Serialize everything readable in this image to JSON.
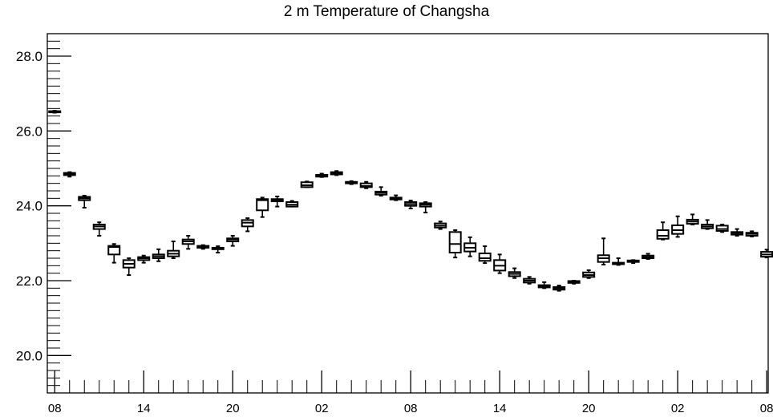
{
  "chart_data": {
    "type": "box",
    "title": "2 m Temperature of Changsha",
    "xlabel": "",
    "ylabel": "",
    "ylim": [
      19.0,
      28.6
    ],
    "y_ticks": [
      20.0,
      22.0,
      24.0,
      26.0,
      28.0
    ],
    "y_tick_labels": [
      "20.0",
      "22.0",
      "24.0",
      "26.0",
      "28.0"
    ],
    "x_range": [
      -0.5,
      48.1
    ],
    "x_ticks": [
      0,
      6,
      12,
      18,
      24,
      30,
      36,
      42,
      48
    ],
    "x_tick_labels": [
      "08",
      "14",
      "20",
      "02",
      "08",
      "14",
      "20",
      "02",
      "08"
    ],
    "grid": false,
    "legend": "none",
    "boxes": [
      {
        "x": 0,
        "min": 26.49,
        "q1": 26.5,
        "median": 26.51,
        "q3": 26.53,
        "max": 26.54
      },
      {
        "x": 1,
        "min": 24.78,
        "q1": 24.82,
        "median": 24.85,
        "q3": 24.88,
        "max": 24.9
      },
      {
        "x": 2,
        "min": 23.95,
        "q1": 24.15,
        "median": 24.2,
        "q3": 24.24,
        "max": 24.27
      },
      {
        "x": 3,
        "min": 23.2,
        "q1": 23.38,
        "median": 23.45,
        "q3": 23.5,
        "max": 23.56
      },
      {
        "x": 4,
        "min": 22.48,
        "q1": 22.7,
        "median": 22.9,
        "q3": 22.93,
        "max": 22.98
      },
      {
        "x": 5,
        "min": 22.15,
        "q1": 22.35,
        "median": 22.45,
        "q3": 22.55,
        "max": 22.6
      },
      {
        "x": 6,
        "min": 22.48,
        "q1": 22.55,
        "median": 22.6,
        "q3": 22.63,
        "max": 22.67
      },
      {
        "x": 7,
        "min": 22.52,
        "q1": 22.6,
        "median": 22.65,
        "q3": 22.7,
        "max": 22.84
      },
      {
        "x": 8,
        "min": 22.6,
        "q1": 22.65,
        "median": 22.72,
        "q3": 22.8,
        "max": 23.05
      },
      {
        "x": 9,
        "min": 22.85,
        "q1": 22.98,
        "median": 23.05,
        "q3": 23.1,
        "max": 23.2
      },
      {
        "x": 10,
        "min": 22.85,
        "q1": 22.88,
        "median": 22.9,
        "q3": 22.93,
        "max": 22.95
      },
      {
        "x": 11,
        "min": 22.75,
        "q1": 22.84,
        "median": 22.86,
        "q3": 22.88,
        "max": 22.92
      },
      {
        "x": 12,
        "min": 22.93,
        "q1": 23.05,
        "median": 23.1,
        "q3": 23.13,
        "max": 23.2
      },
      {
        "x": 13,
        "min": 23.32,
        "q1": 23.45,
        "median": 23.55,
        "q3": 23.62,
        "max": 23.67
      },
      {
        "x": 14,
        "min": 23.7,
        "q1": 23.88,
        "median": 24.15,
        "q3": 24.18,
        "max": 24.22
      },
      {
        "x": 15,
        "min": 23.98,
        "q1": 24.12,
        "median": 24.15,
        "q3": 24.18,
        "max": 24.25
      },
      {
        "x": 16,
        "min": 23.98,
        "q1": 23.98,
        "median": 24.03,
        "q3": 24.1,
        "max": 24.13
      },
      {
        "x": 17,
        "min": 24.5,
        "q1": 24.5,
        "median": 24.55,
        "q3": 24.63,
        "max": 24.65
      },
      {
        "x": 18,
        "min": 24.77,
        "q1": 24.78,
        "median": 24.8,
        "q3": 24.83,
        "max": 24.86
      },
      {
        "x": 19,
        "min": 24.82,
        "q1": 24.84,
        "median": 24.87,
        "q3": 24.9,
        "max": 24.93
      },
      {
        "x": 20,
        "min": 24.58,
        "q1": 24.6,
        "median": 24.62,
        "q3": 24.64,
        "max": 24.66
      },
      {
        "x": 21,
        "min": 24.47,
        "q1": 24.5,
        "median": 24.53,
        "q3": 24.6,
        "max": 24.64
      },
      {
        "x": 22,
        "min": 24.27,
        "q1": 24.3,
        "median": 24.35,
        "q3": 24.38,
        "max": 24.5
      },
      {
        "x": 23,
        "min": 24.15,
        "q1": 24.17,
        "median": 24.2,
        "q3": 24.22,
        "max": 24.28
      },
      {
        "x": 24,
        "min": 23.93,
        "q1": 24.0,
        "median": 24.05,
        "q3": 24.1,
        "max": 24.14
      },
      {
        "x": 25,
        "min": 23.82,
        "q1": 23.98,
        "median": 24.03,
        "q3": 24.07,
        "max": 24.1
      },
      {
        "x": 26,
        "min": 23.38,
        "q1": 23.42,
        "median": 23.47,
        "q3": 23.53,
        "max": 23.58
      },
      {
        "x": 27,
        "min": 22.62,
        "q1": 22.75,
        "median": 22.98,
        "q3": 23.3,
        "max": 23.35
      },
      {
        "x": 28,
        "min": 22.65,
        "q1": 22.78,
        "median": 22.88,
        "q3": 23.0,
        "max": 23.16
      },
      {
        "x": 29,
        "min": 22.47,
        "q1": 22.53,
        "median": 22.6,
        "q3": 22.73,
        "max": 22.92
      },
      {
        "x": 30,
        "min": 22.2,
        "q1": 22.27,
        "median": 22.4,
        "q3": 22.55,
        "max": 22.7
      },
      {
        "x": 31,
        "min": 22.07,
        "q1": 22.12,
        "median": 22.18,
        "q3": 22.23,
        "max": 22.33
      },
      {
        "x": 32,
        "min": 21.92,
        "q1": 21.95,
        "median": 22.0,
        "q3": 22.05,
        "max": 22.1
      },
      {
        "x": 33,
        "min": 21.8,
        "q1": 21.82,
        "median": 21.85,
        "q3": 21.88,
        "max": 21.96
      },
      {
        "x": 34,
        "min": 21.73,
        "q1": 21.76,
        "median": 21.8,
        "q3": 21.83,
        "max": 21.87
      },
      {
        "x": 35,
        "min": 21.92,
        "q1": 21.94,
        "median": 21.97,
        "q3": 21.99,
        "max": 22.0
      },
      {
        "x": 36,
        "min": 22.07,
        "q1": 22.1,
        "median": 22.15,
        "q3": 22.22,
        "max": 22.28
      },
      {
        "x": 37,
        "min": 22.43,
        "q1": 22.5,
        "median": 22.6,
        "q3": 22.68,
        "max": 23.13
      },
      {
        "x": 38,
        "min": 22.42,
        "q1": 22.44,
        "median": 22.46,
        "q3": 22.48,
        "max": 22.6
      },
      {
        "x": 39,
        "min": 22.47,
        "q1": 22.5,
        "median": 22.52,
        "q3": 22.54,
        "max": 22.55
      },
      {
        "x": 40,
        "min": 22.58,
        "q1": 22.6,
        "median": 22.63,
        "q3": 22.67,
        "max": 22.72
      },
      {
        "x": 41,
        "min": 23.1,
        "q1": 23.12,
        "median": 23.2,
        "q3": 23.35,
        "max": 23.56
      },
      {
        "x": 42,
        "min": 23.17,
        "q1": 23.25,
        "median": 23.35,
        "q3": 23.48,
        "max": 23.72
      },
      {
        "x": 43,
        "min": 23.5,
        "q1": 23.52,
        "median": 23.58,
        "q3": 23.63,
        "max": 23.77
      },
      {
        "x": 44,
        "min": 23.38,
        "q1": 23.4,
        "median": 23.45,
        "q3": 23.5,
        "max": 23.62
      },
      {
        "x": 45,
        "min": 23.3,
        "q1": 23.33,
        "median": 23.38,
        "q3": 23.47,
        "max": 23.5
      },
      {
        "x": 46,
        "min": 23.2,
        "q1": 23.23,
        "median": 23.27,
        "q3": 23.3,
        "max": 23.38
      },
      {
        "x": 47,
        "min": 23.18,
        "q1": 23.2,
        "median": 23.25,
        "q3": 23.28,
        "max": 23.32
      },
      {
        "x": 48,
        "min": 22.62,
        "q1": 22.64,
        "median": 22.7,
        "q3": 22.77,
        "max": 22.83
      }
    ]
  }
}
